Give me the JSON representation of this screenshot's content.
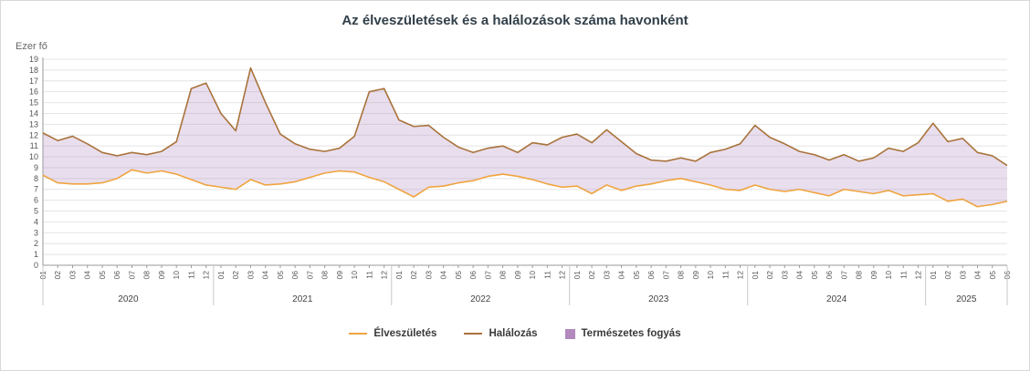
{
  "chart_data": {
    "type": "line",
    "title": "Az élveszületések és a halálozások száma havonként",
    "ylabel": "Ezer fő",
    "ylim": [
      0,
      19
    ],
    "y_ticks": [
      0,
      1,
      2,
      3,
      4,
      5,
      6,
      7,
      8,
      9,
      10,
      11,
      12,
      13,
      14,
      15,
      16,
      17,
      18,
      19
    ],
    "grid": true,
    "legend_position": "bottom",
    "month_labels": [
      "01",
      "02",
      "03",
      "04",
      "05",
      "06",
      "07",
      "08",
      "09",
      "10",
      "11",
      "12"
    ],
    "years": [
      {
        "label": "2020",
        "months": 12
      },
      {
        "label": "2021",
        "months": 12
      },
      {
        "label": "2022",
        "months": 12
      },
      {
        "label": "2023",
        "months": 12
      },
      {
        "label": "2024",
        "months": 12
      },
      {
        "label": "2025",
        "months": 6
      }
    ],
    "series": [
      {
        "name": "Élveszületés",
        "color": "#f0a43f",
        "values": [
          8.3,
          7.6,
          7.5,
          7.5,
          7.6,
          8.0,
          8.8,
          8.5,
          8.7,
          8.4,
          7.9,
          7.4,
          7.2,
          7.0,
          7.9,
          7.4,
          7.5,
          7.7,
          8.1,
          8.5,
          8.7,
          8.6,
          8.1,
          7.7,
          7.0,
          6.3,
          7.2,
          7.3,
          7.6,
          7.8,
          8.2,
          8.4,
          8.2,
          7.9,
          7.5,
          7.2,
          7.3,
          6.6,
          7.4,
          6.9,
          7.3,
          7.5,
          7.8,
          8.0,
          7.7,
          7.4,
          7.0,
          6.9,
          7.4,
          7.0,
          6.8,
          7.0,
          6.7,
          6.4,
          7.0,
          6.8,
          6.6,
          6.9,
          6.4,
          6.5,
          6.6,
          5.9,
          6.1,
          5.4,
          5.6,
          5.9
        ]
      },
      {
        "name": "Halálozás",
        "color": "#a9733b",
        "values": [
          12.2,
          11.5,
          11.9,
          11.2,
          10.4,
          10.1,
          10.4,
          10.2,
          10.5,
          11.4,
          16.3,
          16.8,
          14.0,
          12.4,
          18.2,
          15.0,
          12.1,
          11.2,
          10.7,
          10.5,
          10.8,
          11.9,
          16.0,
          16.3,
          13.4,
          12.8,
          12.9,
          11.8,
          10.9,
          10.4,
          10.8,
          11.0,
          10.4,
          11.3,
          11.1,
          11.8,
          12.1,
          11.3,
          12.5,
          11.4,
          10.3,
          9.7,
          9.6,
          9.9,
          9.6,
          10.4,
          10.7,
          11.2,
          12.9,
          11.8,
          11.2,
          10.5,
          10.2,
          9.7,
          10.2,
          9.6,
          9.9,
          10.8,
          10.5,
          11.3,
          13.1,
          11.4,
          11.7,
          10.4,
          10.1,
          9.2
        ]
      }
    ],
    "area": {
      "name": "Természetes fogyás",
      "color": "#b189bd",
      "opacity": 0.28
    }
  }
}
